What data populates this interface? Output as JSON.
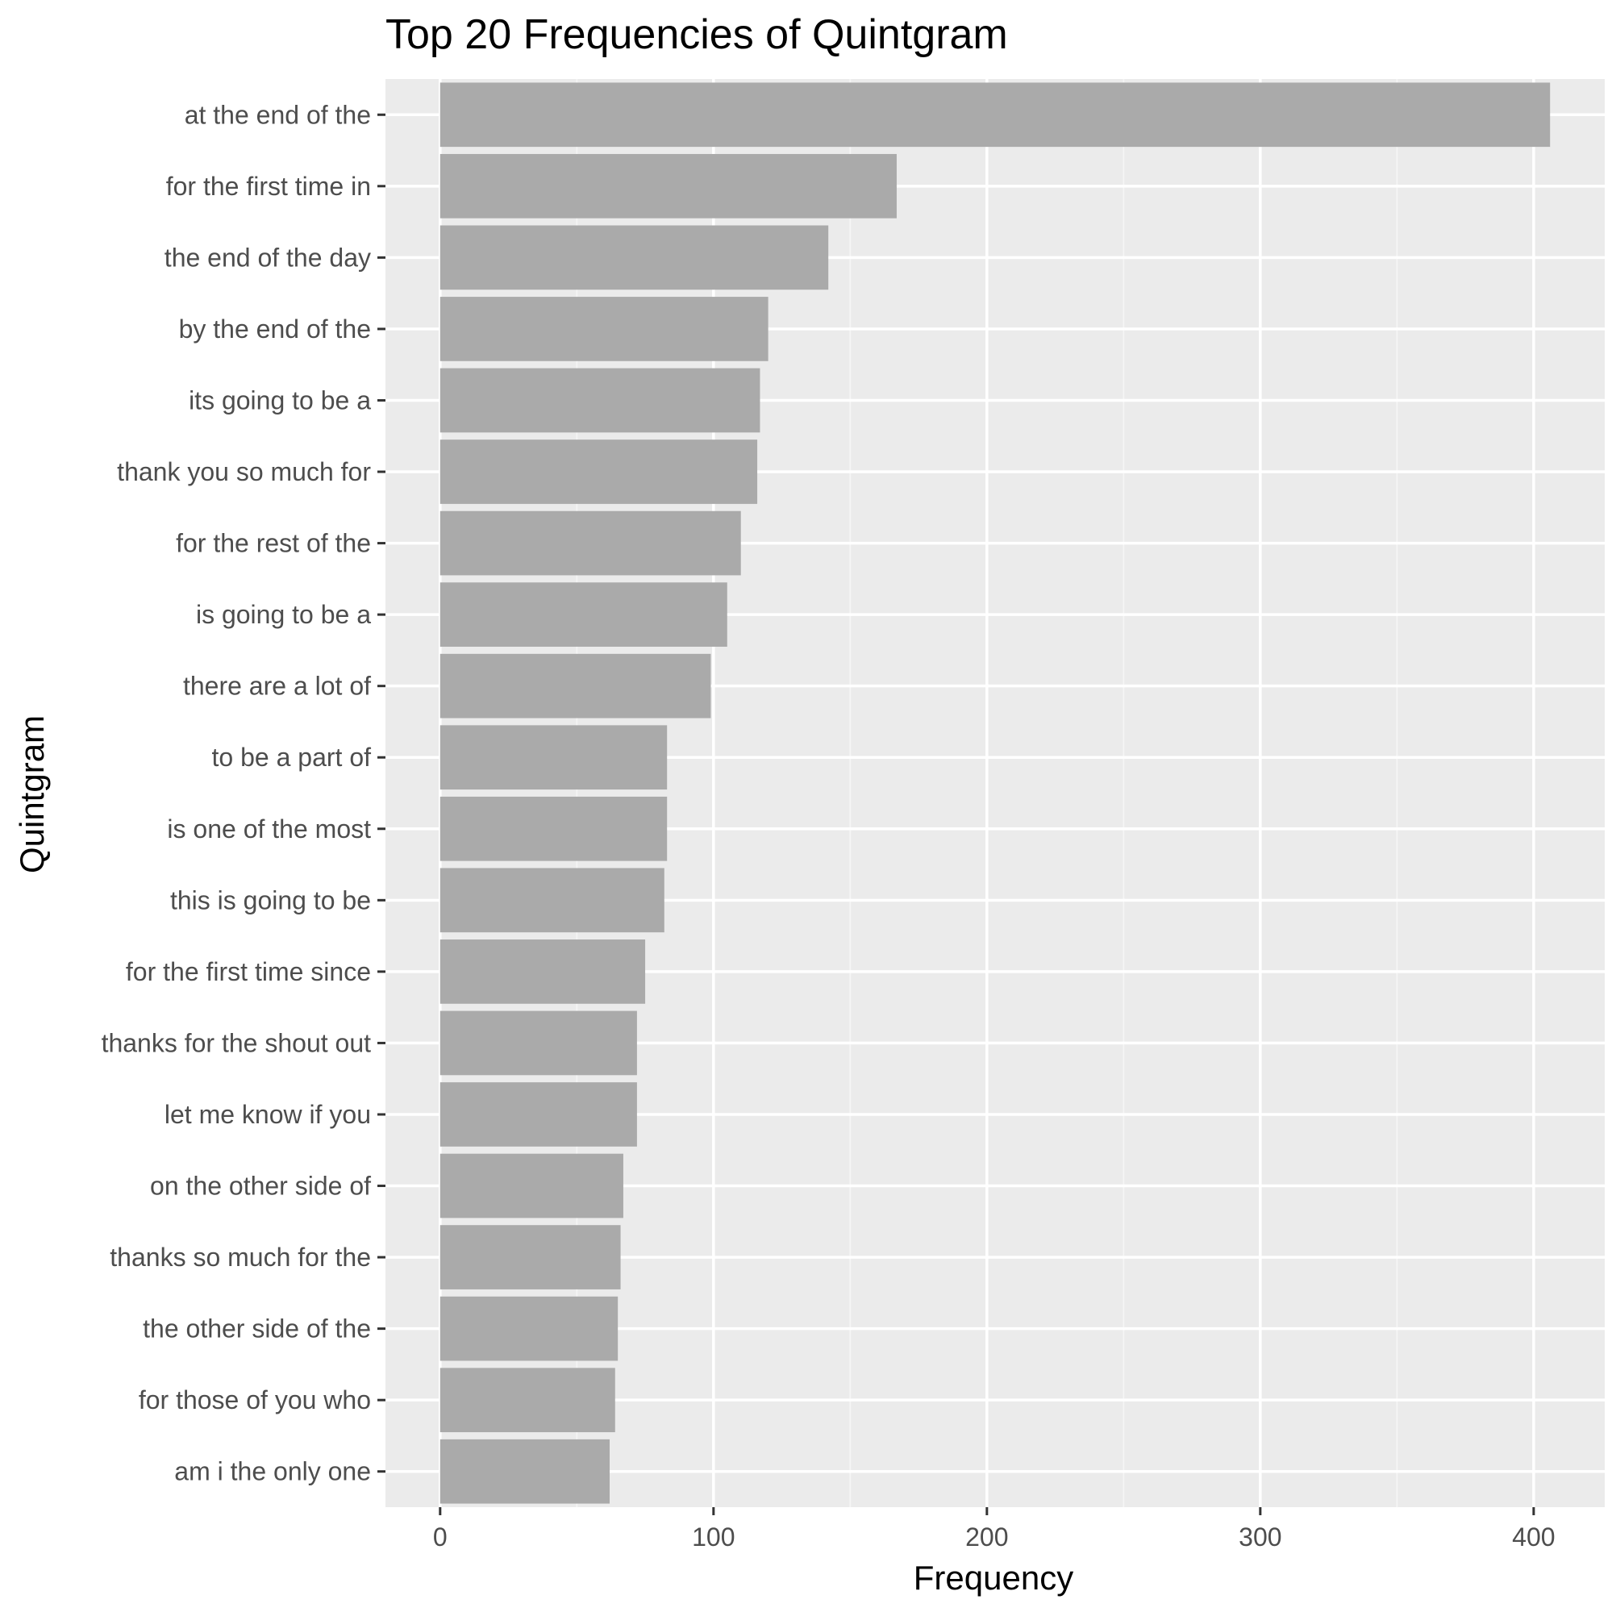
{
  "chart_data": {
    "type": "bar",
    "orientation": "horizontal",
    "title": "Top 20 Frequencies of Quintgram",
    "xlabel": "Frequency",
    "ylabel": "Quintgram",
    "categories": [
      "at the end of the",
      "for the first time in",
      "the end of the day",
      "by the end of the",
      "its going to be a",
      "thank you so much for",
      "for the rest of the",
      "is going to be a",
      "there are a lot of",
      "to be a part of",
      "is one of the most",
      "this is going to be",
      "for the first time since",
      "thanks for the shout out",
      "let me know if you",
      "on the other side of",
      "thanks so much for the",
      "the other side of the",
      "for those of you who",
      "am i the only one"
    ],
    "values": [
      406,
      167,
      142,
      120,
      117,
      116,
      110,
      105,
      99,
      83,
      83,
      82,
      75,
      72,
      72,
      67,
      66,
      65,
      64,
      62
    ],
    "xlim": [
      -20,
      426
    ],
    "x_ticks": [
      0,
      100,
      200,
      300,
      400
    ],
    "x_tick_labels": [
      "0",
      "100",
      "200",
      "300",
      "400"
    ],
    "grid": true,
    "legend": "none",
    "colors": {
      "bar": "#aaaaaa",
      "panel_background": "#ebebeb",
      "grid_major": "#ffffff",
      "grid_minor": "#f5f5f5",
      "tick_label": "#4d4d4d",
      "tick_mark": "#333333"
    }
  }
}
